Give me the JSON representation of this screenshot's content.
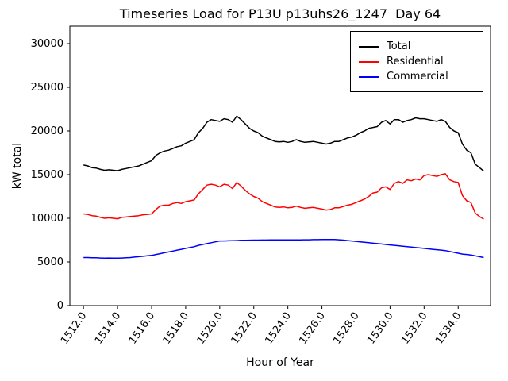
{
  "chart_data": {
    "type": "line",
    "title": "Timeseries Load for P13U p13uhs26_1247  Day 64",
    "xlabel": "Hour of Year",
    "ylabel": "kW total",
    "xlim": [
      1511.2,
      1535.9
    ],
    "ylim": [
      0,
      32000
    ],
    "grid": false,
    "legend_position": "upper right",
    "x_ticks": [
      1512,
      1514,
      1516,
      1518,
      1520,
      1522,
      1524,
      1526,
      1528,
      1530,
      1532,
      1534
    ],
    "x_tick_labels": [
      "1512.0",
      "1514.0",
      "1516.0",
      "1518.0",
      "1520.0",
      "1522.0",
      "1524.0",
      "1526.0",
      "1528.0",
      "1530.0",
      "1532.0",
      "1534.0"
    ],
    "y_ticks": [
      0,
      5000,
      10000,
      15000,
      20000,
      25000,
      30000
    ],
    "y_tick_labels": [
      "0",
      "5000",
      "10000",
      "15000",
      "20000",
      "25000",
      "30000"
    ],
    "x": [
      1512,
      1512.25,
      1512.5,
      1512.75,
      1513,
      1513.25,
      1513.5,
      1513.75,
      1514,
      1514.25,
      1514.5,
      1514.75,
      1515,
      1515.25,
      1515.5,
      1515.75,
      1516,
      1516.25,
      1516.5,
      1516.75,
      1517,
      1517.25,
      1517.5,
      1517.75,
      1518,
      1518.25,
      1518.5,
      1518.75,
      1519,
      1519.25,
      1519.5,
      1519.75,
      1520,
      1520.25,
      1520.5,
      1520.75,
      1521,
      1521.25,
      1521.5,
      1521.75,
      1522,
      1522.25,
      1522.5,
      1522.75,
      1523,
      1523.25,
      1523.5,
      1523.75,
      1524,
      1524.25,
      1524.5,
      1524.75,
      1525,
      1525.25,
      1525.5,
      1525.75,
      1526,
      1526.25,
      1526.5,
      1526.75,
      1527,
      1527.25,
      1527.5,
      1527.75,
      1528,
      1528.25,
      1528.5,
      1528.75,
      1529,
      1529.25,
      1529.5,
      1529.75,
      1530,
      1530.25,
      1530.5,
      1530.75,
      1531,
      1531.25,
      1531.5,
      1531.75,
      1532,
      1532.25,
      1532.5,
      1532.75,
      1533,
      1533.25,
      1533.5,
      1533.75,
      1534,
      1534.25,
      1534.5,
      1534.75,
      1535,
      1535.25,
      1535.5
    ],
    "series": [
      {
        "name": "Total",
        "color": "#000000",
        "values": [
          16100,
          16000,
          15800,
          15750,
          15600,
          15500,
          15550,
          15500,
          15450,
          15600,
          15700,
          15800,
          15900,
          16000,
          16200,
          16400,
          16600,
          17200,
          17500,
          17700,
          17800,
          18000,
          18200,
          18300,
          18600,
          18800,
          19000,
          19800,
          20300,
          21000,
          21300,
          21200,
          21100,
          21400,
          21300,
          21000,
          21700,
          21300,
          20800,
          20300,
          20000,
          19800,
          19400,
          19200,
          19000,
          18800,
          18750,
          18800,
          18700,
          18800,
          19000,
          18800,
          18700,
          18750,
          18800,
          18700,
          18600,
          18500,
          18600,
          18800,
          18800,
          19000,
          19200,
          19300,
          19500,
          19800,
          20000,
          20300,
          20400,
          20500,
          21000,
          21200,
          20800,
          21300,
          21300,
          21000,
          21200,
          21300,
          21500,
          21400,
          21400,
          21300,
          21200,
          21100,
          21300,
          21100,
          20400,
          20000,
          19800,
          18500,
          17800,
          17500,
          16200,
          15800,
          15400
        ]
      },
      {
        "name": "Residential",
        "color": "#ff0000",
        "values": [
          10500,
          10450,
          10300,
          10250,
          10100,
          10000,
          10050,
          10000,
          9950,
          10100,
          10150,
          10200,
          10250,
          10300,
          10400,
          10450,
          10500,
          11000,
          11400,
          11500,
          11500,
          11700,
          11800,
          11700,
          11900,
          12000,
          12100,
          12800,
          13300,
          13800,
          13900,
          13800,
          13600,
          13900,
          13800,
          13400,
          14100,
          13700,
          13200,
          12800,
          12500,
          12300,
          11900,
          11700,
          11500,
          11300,
          11250,
          11300,
          11200,
          11250,
          11400,
          11250,
          11150,
          11200,
          11250,
          11150,
          11050,
          10950,
          11000,
          11200,
          11200,
          11350,
          11500,
          11600,
          11800,
          12000,
          12200,
          12500,
          12900,
          13000,
          13500,
          13600,
          13300,
          14000,
          14200,
          14000,
          14400,
          14300,
          14500,
          14400,
          14900,
          15000,
          14900,
          14800,
          15000,
          15100,
          14400,
          14200,
          14100,
          12600,
          12000,
          11800,
          10600,
          10200,
          9900
        ]
      },
      {
        "name": "Commercial",
        "color": "#0000ff",
        "values": [
          5500,
          5500,
          5480,
          5470,
          5450,
          5440,
          5450,
          5440,
          5430,
          5450,
          5470,
          5500,
          5550,
          5600,
          5650,
          5700,
          5750,
          5850,
          5950,
          6050,
          6150,
          6250,
          6350,
          6450,
          6550,
          6650,
          6750,
          6900,
          7000,
          7100,
          7200,
          7300,
          7400,
          7400,
          7420,
          7430,
          7450,
          7470,
          7480,
          7490,
          7500,
          7500,
          7510,
          7510,
          7520,
          7520,
          7520,
          7520,
          7520,
          7530,
          7530,
          7530,
          7540,
          7540,
          7550,
          7550,
          7560,
          7560,
          7570,
          7560,
          7540,
          7500,
          7450,
          7400,
          7350,
          7300,
          7250,
          7200,
          7150,
          7100,
          7050,
          7000,
          6950,
          6900,
          6850,
          6800,
          6750,
          6700,
          6650,
          6600,
          6550,
          6500,
          6450,
          6400,
          6350,
          6300,
          6200,
          6100,
          6000,
          5900,
          5850,
          5800,
          5700,
          5600,
          5500
        ]
      }
    ]
  }
}
